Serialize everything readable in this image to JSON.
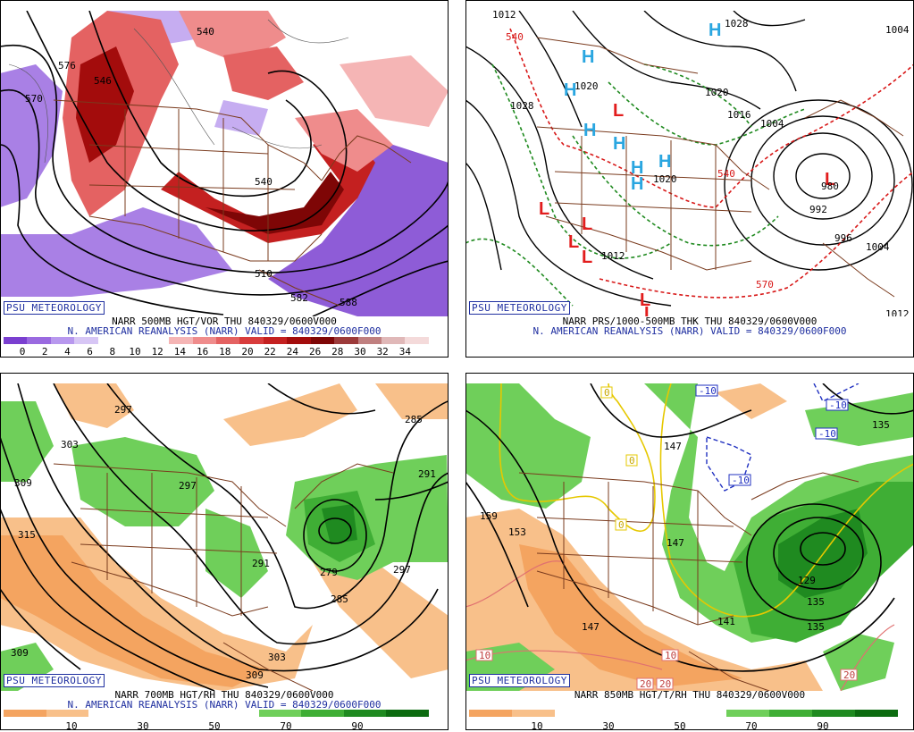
{
  "panels": {
    "vort500": {
      "credit": "PSU METEOROLOGY",
      "title": "NARR 500MB HGT/VOR THU 840329/0600V000",
      "subtitle": "N. AMERICAN REANALYSIS (NARR) VALID = 840329/0600F000",
      "scale_ticks": [
        "0",
        "2",
        "4",
        "6",
        "8",
        "10",
        "12",
        "14",
        "16",
        "18",
        "20",
        "22",
        "24",
        "26",
        "28",
        "30",
        "32",
        "34"
      ],
      "scale_colors": [
        "#7a3fd0",
        "#9a6ae0",
        "#b898ee",
        "#d7c6f5",
        "#ffffff",
        "#ffffff",
        "#ffffff",
        "#f5b5b5",
        "#ef8c8c",
        "#e46262",
        "#d83c3c",
        "#c42020",
        "#a30c0c",
        "#7e0606",
        "#9c3a3a",
        "#c08080",
        "#e0b8b8",
        "#f4dada"
      ],
      "contour_labels": [
        "546",
        "540",
        "570",
        "576",
        "582",
        "510",
        "588",
        "540"
      ]
    },
    "prs": {
      "credit": "PSU METEOROLOGY",
      "title": "NARR PRS/1000-500MB THK THU 840329/0600V000",
      "subtitle": "N. AMERICAN REANALYSIS (NARR) VALID = 840329/0600F000",
      "isobar_labels": [
        "1012",
        "1028",
        "1028",
        "1020",
        "1020",
        "1016",
        "1020",
        "1004",
        "1012",
        "980",
        "992",
        "996",
        "1004",
        "1012",
        "1004"
      ],
      "thickness_labels": [
        "540",
        "540",
        "570",
        "540"
      ],
      "high_symbol": "H",
      "low_symbol": "L"
    },
    "rh700": {
      "credit": "PSU METEOROLOGY",
      "title": "NARR 700MB HGT/RH THU 840329/0600V000",
      "subtitle": "N. AMERICAN REANALYSIS (NARR) VALID = 840329/0600F000",
      "scale_ticks": [
        "10",
        "30",
        "50",
        "70",
        "90"
      ],
      "scale_colors": [
        "#f4a460",
        "#f8c08a",
        "#ffffff",
        "#ffffff",
        "#ffffff",
        "#ffffff",
        "#6fcf5a",
        "#3fae35",
        "#1f8a20",
        "#0c6b10"
      ],
      "contour_labels": [
        "297",
        "303",
        "309",
        "315",
        "297",
        "291",
        "285",
        "291",
        "279",
        "285",
        "297",
        "303",
        "309",
        "309"
      ]
    },
    "t850": {
      "credit": "PSU METEOROLOGY",
      "title": "NARR 850MB HGT/T/RH THU 840329/0600V000",
      "scale_ticks": [
        "10",
        "30",
        "50",
        "70",
        "90"
      ],
      "scale_colors": [
        "#f4a460",
        "#f8c08a",
        "#ffffff",
        "#ffffff",
        "#ffffff",
        "#ffffff",
        "#6fcf5a",
        "#3fae35",
        "#1f8a20",
        "#0c6b10"
      ],
      "contour_labels": [
        "159",
        "153",
        "147",
        "147",
        "141",
        "129",
        "135",
        "135",
        "147",
        "135"
      ],
      "temp_labels": [
        "-10",
        "-10",
        "-10",
        "-10",
        "0",
        "0",
        "0",
        "10",
        "10",
        "20",
        "20",
        "20"
      ]
    }
  },
  "colors": {
    "credit_blue": "#1f2fa0",
    "border_brown": "#7a3b1e",
    "high_blue": "#2aa6e0",
    "low_red": "#e21d1d",
    "thk_red": "#d81818",
    "thk_green": "#1f8a1f"
  }
}
